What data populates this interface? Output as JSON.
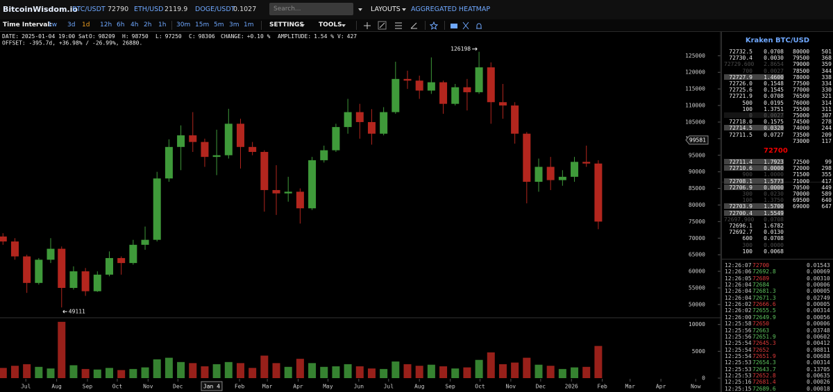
{
  "header": {
    "brand": "BitcoinWisdom.io",
    "tickers": [
      {
        "symbol": "BTC/USDT",
        "price": "72790"
      },
      {
        "symbol": "ETH/USD",
        "price": "2119.9"
      },
      {
        "symbol": "DOGE/USDT",
        "price": "0.1027"
      }
    ],
    "search_placeholder": "Search...",
    "layouts": "LAYOUTS",
    "heatmap": "AGGREGATED HEATMAP"
  },
  "toolbar": {
    "label": "Time Interval:",
    "intervals": [
      "1w",
      "3d",
      "1d",
      "12h",
      "6h",
      "4h",
      "2h",
      "1h",
      "30m",
      "15m",
      "5m",
      "3m",
      "1m"
    ],
    "active": "1d",
    "settings": "SETTINGS",
    "tools": "TOOLS"
  },
  "chart": {
    "info": [
      {
        "label": "DATE:",
        "value": "2025-01-04 19:00 Sat"
      },
      {
        "label": "O:",
        "value": "98209"
      },
      {
        "label": "H:",
        "value": "98750"
      },
      {
        "label": "L:",
        "value": "97250"
      },
      {
        "label": "C:",
        "value": "98306"
      },
      {
        "label": "CHANGE:",
        "value": "+0.10 %"
      },
      {
        "label": "AMPLITUDE:",
        "value": "1.54 %"
      },
      {
        "label": "V:",
        "value": "427"
      }
    ],
    "offset": "OFFSET: -395.7d, +36.98% / -26.99%, 26880.",
    "candles": {
      "dates": [
        "2024-06-08",
        "2024-06-20",
        "2024-07-02",
        "2024-07-14",
        "2024-07-26",
        "2024-08-06",
        "2024-08-18",
        "2024-08-30",
        "2024-09-11",
        "2024-09-23",
        "2024-10-05",
        "2024-10-17",
        "2024-10-29",
        "2024-11-10",
        "2024-11-22",
        "2024-12-04",
        "2024-12-16",
        "2024-12-28",
        "2025-01-09",
        "2025-01-21",
        "2025-02-02",
        "2025-02-14",
        "2025-02-26",
        "2025-03-10",
        "2025-03-22",
        "2025-04-03",
        "2025-04-15",
        "2025-04-27",
        "2025-05-09",
        "2025-05-21",
        "2025-06-02",
        "2025-06-14",
        "2025-06-26",
        "2025-07-08",
        "2025-07-20",
        "2025-08-01",
        "2025-08-13",
        "2025-08-25",
        "2025-09-06",
        "2025-09-18",
        "2025-09-30",
        "2025-10-12",
        "2025-10-24",
        "2025-11-05",
        "2025-11-17",
        "2025-11-29",
        "2025-12-11",
        "2025-12-23",
        "2026-01-04",
        "2026-01-16",
        "2026-01-28"
      ],
      "open": [
        70500,
        69000,
        64500,
        56500,
        63500,
        66800,
        55000,
        60000,
        54000,
        59000,
        64000,
        62500,
        68000,
        69500,
        88000,
        97500,
        101000,
        99000,
        94500,
        95000,
        104500,
        97500,
        96000,
        84500,
        83500,
        84000,
        79000,
        93500,
        96500,
        103500,
        108000,
        105000,
        101500,
        108000,
        118000,
        117500,
        114500,
        117000,
        110500,
        115500,
        114000,
        121500,
        111000,
        110000,
        101500,
        87000,
        91500,
        87500,
        88500,
        93000,
        92500
      ],
      "high": [
        71500,
        70000,
        65000,
        64000,
        70000,
        67500,
        61500,
        61000,
        60000,
        66000,
        64500,
        69500,
        73500,
        90000,
        99800,
        104000,
        108000,
        100000,
        102700,
        109000,
        106000,
        99000,
        96500,
        92000,
        88500,
        85000,
        94500,
        97900,
        104500,
        112000,
        110500,
        108900,
        109500,
        123200,
        120500,
        119000,
        124500,
        117500,
        116500,
        118000,
        126198,
        123000,
        116500,
        111000,
        102000,
        94000,
        94500,
        90500,
        94500,
        97900,
        93500
      ],
      "low": [
        68000,
        63500,
        53500,
        56000,
        62500,
        49111,
        54500,
        52600,
        53800,
        58500,
        59000,
        62000,
        66500,
        69000,
        87000,
        90500,
        96000,
        91500,
        89000,
        94000,
        91000,
        95000,
        78000,
        77000,
        81000,
        74400,
        78500,
        92800,
        96000,
        101500,
        100000,
        98200,
        101000,
        107500,
        115000,
        112000,
        113500,
        107500,
        110000,
        108500,
        113500,
        104500,
        106000,
        98500,
        80500,
        84000,
        84500,
        85800,
        87000,
        91500,
        72700
      ],
      "close": [
        69000,
        64500,
        56500,
        63500,
        66800,
        55000,
        60000,
        54000,
        59000,
        64000,
        62500,
        68000,
        69500,
        88000,
        97500,
        101000,
        99000,
        94500,
        95000,
        104500,
        97500,
        96000,
        84500,
        83500,
        84000,
        79000,
        93500,
        96500,
        103500,
        108000,
        105000,
        101500,
        108000,
        118000,
        117500,
        114500,
        117000,
        110500,
        115500,
        114000,
        121500,
        111000,
        110000,
        101500,
        87000,
        91500,
        87500,
        88500,
        93000,
        92500,
        75000
      ]
    },
    "volume": [
      1900,
      2300,
      2600,
      2100,
      1800,
      10500,
      2400,
      1700,
      1600,
      1900,
      1500,
      1700,
      2000,
      3500,
      3800,
      3000,
      2800,
      2200,
      2600,
      3000,
      2800,
      1900,
      4200,
      2800,
      2100,
      3600,
      2800,
      2100,
      2200,
      2600,
      2200,
      1800,
      1700,
      3100,
      2600,
      2300,
      2500,
      2200,
      1800,
      2000,
      3400,
      4800,
      2600,
      2900,
      3800,
      2500,
      2300,
      1700,
      2000,
      2100,
      6000
    ],
    "ylim": [
      46000,
      128000
    ],
    "yticks": [
      50000,
      55000,
      60000,
      65000,
      70000,
      75000,
      80000,
      85000,
      90000,
      95000,
      100000,
      105000,
      110000,
      115000,
      120000,
      125000
    ],
    "volume_ylim": [
      0,
      11000
    ],
    "volume_yticks": [
      0,
      5000,
      10000
    ],
    "xlim": [
      "2024-06-05",
      "2026-05-31"
    ],
    "xticks": [
      {
        "value": "2024-07-01",
        "label": "Jul"
      },
      {
        "value": "2024-08-01",
        "label": "Aug"
      },
      {
        "value": "2024-09-01",
        "label": "Sep"
      },
      {
        "value": "2024-10-01",
        "label": "Oct"
      },
      {
        "value": "2024-11-01",
        "label": "Nov"
      },
      {
        "value": "2024-12-01",
        "label": "Dec"
      },
      {
        "value": "2025-02-01",
        "label": "Feb"
      },
      {
        "value": "2025-03-01",
        "label": "Mar"
      },
      {
        "value": "2025-04-01",
        "label": "Apr"
      },
      {
        "value": "2025-05-01",
        "label": "May"
      },
      {
        "value": "2025-06-01",
        "label": "Jun"
      },
      {
        "value": "2025-07-01",
        "label": "Jul"
      },
      {
        "value": "2025-08-01",
        "label": "Aug"
      },
      {
        "value": "2025-09-01",
        "label": "Sep"
      },
      {
        "value": "2025-10-01",
        "label": "Oct"
      },
      {
        "value": "2025-11-01",
        "label": "Nov"
      },
      {
        "value": "2025-12-01",
        "label": "Dec"
      },
      {
        "value": "2026-01-01",
        "label": "2026"
      },
      {
        "value": "2026-02-01",
        "label": "Feb"
      },
      {
        "value": "2026-03-01",
        "label": "Mar"
      },
      {
        "value": "2026-04-01",
        "label": "Apr"
      },
      {
        "value": "2026-05-06",
        "label": "Now"
      }
    ],
    "crosshair": {
      "date": "2025-01-04",
      "label": "Jan 4",
      "price": 99581
    },
    "colors": {
      "up": "#3f9a3a",
      "down": "#b3261e"
    }
  },
  "orderbook": {
    "title": "Kraken BTC/USD",
    "asks": [
      {
        "price": "72732.5",
        "amount": "0.0708"
      },
      {
        "price": "72730.4",
        "amount": "0.0030"
      },
      {
        "price": "72729.600",
        "amount": "2.8654",
        "faded": true
      },
      {
        "price": "700",
        "amount": "0.0027",
        "faded": true
      },
      {
        "price": "72727.9",
        "amount": "1.4600",
        "highlight": true
      },
      {
        "price": "72726.0",
        "amount": "0.1548"
      },
      {
        "price": "72725.6",
        "amount": "0.1545"
      },
      {
        "price": "72721.9",
        "amount": "0.0708"
      },
      {
        "price": "500",
        "amount": "0.0195"
      },
      {
        "price": "100",
        "amount": "1.3751"
      },
      {
        "price": "0",
        "amount": "0.0027",
        "highlight": true,
        "faded": true
      },
      {
        "price": "72718.0",
        "amount": "0.1575"
      },
      {
        "price": "72714.5",
        "amount": "0.0320",
        "highlight": true
      },
      {
        "price": "72711.5",
        "amount": "0.0727"
      }
    ],
    "mid": "72700",
    "bids": [
      {
        "price": "72711.4",
        "amount": "1.7923",
        "highlight": true
      },
      {
        "price": "72710.6",
        "amount": "0.0000",
        "highlight": true
      },
      {
        "price": "900",
        "amount": "1.0000",
        "faded": true
      },
      {
        "price": "72708.1",
        "amount": "1.5773",
        "highlight": true
      },
      {
        "price": "72706.9",
        "amount": "0.0000",
        "highlight": true
      },
      {
        "price": "300",
        "amount": "0.0230",
        "faded": true
      },
      {
        "price": "100",
        "amount": "1.3750",
        "faded": true
      },
      {
        "price": "72703.9",
        "amount": "1.5700",
        "highlight": true
      },
      {
        "price": "72700.4",
        "amount": "1.5549",
        "highlight": true
      },
      {
        "price": "72697.900",
        "amount": "0.0708",
        "faded": true
      },
      {
        "price": "72696.1",
        "amount": "1.6782"
      },
      {
        "price": "72692.7",
        "amount": "0.0130"
      },
      {
        "price": "600",
        "amount": "0.0708"
      },
      {
        "price": "300",
        "amount": "0.0000",
        "faded": true
      },
      {
        "price": "100",
        "amount": "0.0068"
      }
    ],
    "depth_asks": [
      {
        "price": "80000",
        "count": "501"
      },
      {
        "price": "79500",
        "count": "368"
      },
      {
        "price": "79000",
        "count": "359"
      },
      {
        "price": "78500",
        "count": "344"
      },
      {
        "price": "78000",
        "count": "338"
      },
      {
        "price": "77500",
        "count": "334"
      },
      {
        "price": "77000",
        "count": "330"
      },
      {
        "price": "76500",
        "count": "321"
      },
      {
        "price": "76000",
        "count": "314"
      },
      {
        "price": "75500",
        "count": "311"
      },
      {
        "price": "75000",
        "count": "307"
      },
      {
        "price": "74500",
        "count": "278"
      },
      {
        "price": "74000",
        "count": "244"
      },
      {
        "price": "73500",
        "count": "209"
      },
      {
        "price": "73000",
        "count": "117"
      }
    ],
    "depth_bids": [
      {
        "price": "72500",
        "count": "99"
      },
      {
        "price": "72000",
        "count": "298"
      },
      {
        "price": "71500",
        "count": "355"
      },
      {
        "price": "71000",
        "count": "417"
      },
      {
        "price": "70500",
        "count": "449"
      },
      {
        "price": "70000",
        "count": "589"
      },
      {
        "price": "69500",
        "count": "640"
      },
      {
        "price": "69000",
        "count": "647"
      }
    ]
  },
  "trades": [
    {
      "time": "12:26:07",
      "price": "72700",
      "amount": "0.01543",
      "side": "sell"
    },
    {
      "time": "12:26:06",
      "price": "72692.8",
      "amount": "0.00069",
      "side": "buy"
    },
    {
      "time": "12:26:05",
      "price": "72689",
      "amount": "0.00310",
      "side": "sell"
    },
    {
      "time": "12:26:04",
      "price": "72684",
      "amount": "0.00006",
      "side": "buy"
    },
    {
      "time": "12:26:04",
      "price": "72681.3",
      "amount": "0.00005",
      "side": "buy"
    },
    {
      "time": "12:26:04",
      "price": "72671.3",
      "amount": "0.02749",
      "side": "buy"
    },
    {
      "time": "12:26:02",
      "price": "72666.6",
      "amount": "0.00005",
      "side": "sell"
    },
    {
      "time": "12:26:02",
      "price": "72655.5",
      "amount": "0.00314",
      "side": "buy"
    },
    {
      "time": "12:26:00",
      "price": "72649.9",
      "amount": "0.00056",
      "side": "buy"
    },
    {
      "time": "12:25:58",
      "price": "72650",
      "amount": "0.00006",
      "side": "sell"
    },
    {
      "time": "12:25:56",
      "price": "72663",
      "amount": "0.03748",
      "side": "buy"
    },
    {
      "time": "12:25:56",
      "price": "72651.9",
      "amount": "0.00602",
      "side": "buy"
    },
    {
      "time": "12:25:54",
      "price": "72645.3",
      "amount": "0.00412",
      "side": "sell"
    },
    {
      "time": "12:25:54",
      "price": "72652",
      "amount": "0.98811",
      "side": "sell"
    },
    {
      "time": "12:25:54",
      "price": "72651.9",
      "amount": "0.00688",
      "side": "sell"
    },
    {
      "time": "12:25:53",
      "price": "72654.3",
      "amount": "0.00314",
      "side": "buy"
    },
    {
      "time": "12:25:53",
      "price": "72643.7",
      "amount": "0.13705",
      "side": "buy"
    },
    {
      "time": "12:25:53",
      "price": "72652.8",
      "amount": "0.00635",
      "side": "sell"
    },
    {
      "time": "12:25:16",
      "price": "72681.4",
      "amount": "0.00026",
      "side": "sell"
    },
    {
      "time": "12:25:15",
      "price": "72689.6",
      "amount": "0.00018",
      "side": "buy"
    }
  ]
}
